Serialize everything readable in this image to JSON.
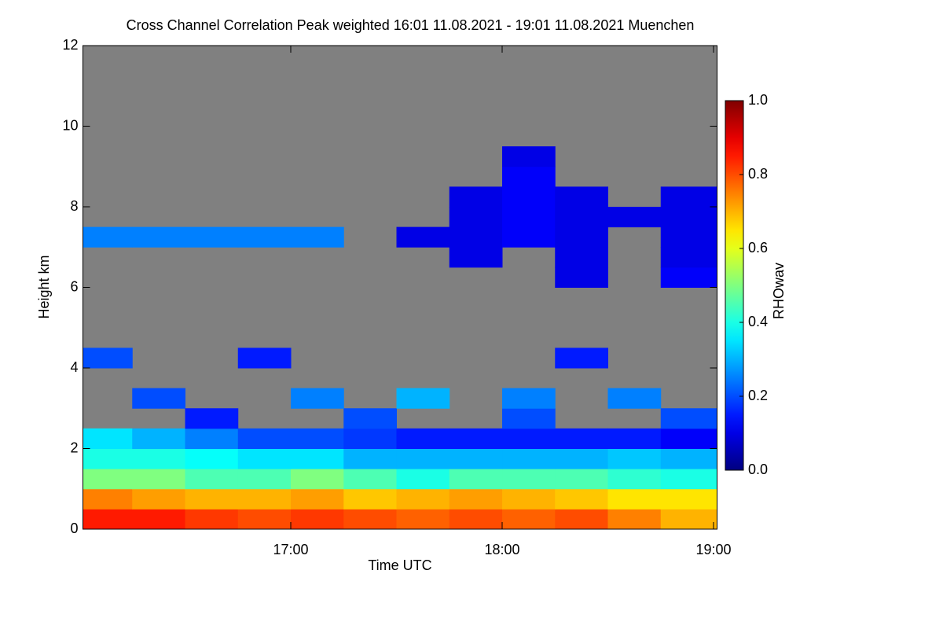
{
  "chart_data": {
    "type": "heatmap",
    "title": "Cross Channel Correlation Peak weighted   16:01 11.08.2021 - 19:01 11.08.2021 Muenchen",
    "x_label": "Time UTC",
    "y_label": "Height km",
    "colorbar_label": "RHOwav",
    "colormap": "jet",
    "missing_color": "#808080",
    "xlim": [
      16.0167,
      19.0167
    ],
    "xticks": [
      {
        "value": 17,
        "label": "17:00"
      },
      {
        "value": 18,
        "label": "18:00"
      },
      {
        "value": 19,
        "label": "19:00"
      }
    ],
    "ylim": [
      0,
      12
    ],
    "yticks": [
      0,
      2,
      4,
      6,
      8,
      10,
      12
    ],
    "clim": [
      0,
      1
    ],
    "cticks": [
      {
        "value": 0,
        "label": "0.0"
      },
      0.2,
      0.4,
      0.6,
      0.8,
      {
        "value": 1,
        "label": "1.0"
      }
    ],
    "xbins": [
      16.0167,
      16.25,
      16.5,
      16.75,
      17,
      17.25,
      17.5,
      17.75,
      18,
      18.25,
      18.5,
      18.75,
      19.0167
    ],
    "ybins": [
      0,
      0.5,
      1,
      1.5,
      2,
      2.5,
      3,
      3.5,
      4,
      4.5,
      5,
      5.5,
      6,
      6.5,
      7,
      7.5,
      8,
      8.5,
      9,
      9.5,
      10,
      10.5,
      11,
      11.5,
      12
    ],
    "values": [
      [
        0.85,
        0.85,
        0.82,
        0.8,
        0.82,
        0.8,
        0.78,
        0.8,
        0.78,
        0.8,
        0.75,
        0.7
      ],
      [
        0.75,
        0.72,
        0.7,
        0.7,
        0.72,
        0.68,
        0.7,
        0.72,
        0.7,
        0.68,
        0.65,
        0.65
      ],
      [
        0.5,
        0.5,
        0.45,
        0.45,
        0.5,
        0.45,
        0.4,
        0.45,
        0.45,
        0.45,
        0.42,
        0.4
      ],
      [
        0.4,
        0.4,
        0.38,
        0.35,
        0.35,
        0.3,
        0.3,
        0.3,
        0.3,
        0.3,
        0.32,
        0.3
      ],
      [
        0.35,
        0.3,
        0.25,
        0.2,
        0.2,
        0.18,
        0.15,
        0.15,
        0.15,
        0.15,
        0.15,
        0.12
      ],
      [
        null,
        null,
        0.15,
        null,
        null,
        0.2,
        null,
        null,
        0.2,
        null,
        null,
        0.2
      ],
      [
        null,
        0.2,
        null,
        null,
        0.25,
        null,
        0.3,
        null,
        0.25,
        null,
        0.25,
        null
      ],
      [
        null,
        null,
        null,
        null,
        null,
        null,
        null,
        null,
        null,
        null,
        null,
        null
      ],
      [
        0.2,
        null,
        null,
        0.15,
        null,
        null,
        null,
        null,
        null,
        0.15,
        null,
        null
      ],
      [
        null,
        null,
        null,
        null,
        null,
        null,
        null,
        null,
        null,
        null,
        null,
        null
      ],
      [
        null,
        null,
        null,
        null,
        null,
        null,
        null,
        null,
        null,
        null,
        null,
        null
      ],
      [
        null,
        null,
        null,
        null,
        null,
        null,
        null,
        null,
        null,
        null,
        null,
        null
      ],
      [
        null,
        null,
        null,
        null,
        null,
        null,
        null,
        null,
        null,
        0.1,
        null,
        0.12
      ],
      [
        null,
        null,
        null,
        null,
        null,
        null,
        null,
        0.1,
        null,
        0.1,
        null,
        0.1
      ],
      [
        0.25,
        0.25,
        0.25,
        0.25,
        0.25,
        null,
        0.1,
        0.1,
        0.12,
        0.1,
        null,
        0.1
      ],
      [
        null,
        null,
        null,
        null,
        null,
        null,
        null,
        0.1,
        0.12,
        0.1,
        0.1,
        0.1
      ],
      [
        null,
        null,
        null,
        null,
        null,
        null,
        null,
        0.1,
        0.12,
        0.1,
        null,
        0.1
      ],
      [
        null,
        null,
        null,
        null,
        null,
        null,
        null,
        null,
        0.12,
        null,
        null,
        null
      ],
      [
        null,
        null,
        null,
        null,
        null,
        null,
        null,
        null,
        0.1,
        null,
        null,
        null
      ],
      [
        null,
        null,
        null,
        null,
        null,
        null,
        null,
        null,
        null,
        null,
        null,
        null
      ],
      [
        null,
        null,
        null,
        null,
        null,
        null,
        null,
        null,
        null,
        null,
        null,
        null
      ],
      [
        null,
        null,
        null,
        null,
        null,
        null,
        null,
        null,
        null,
        null,
        null,
        null
      ],
      [
        null,
        null,
        null,
        null,
        null,
        null,
        null,
        null,
        null,
        null,
        null,
        null
      ],
      [
        null,
        null,
        null,
        null,
        null,
        null,
        null,
        null,
        null,
        null,
        null,
        null
      ]
    ]
  }
}
